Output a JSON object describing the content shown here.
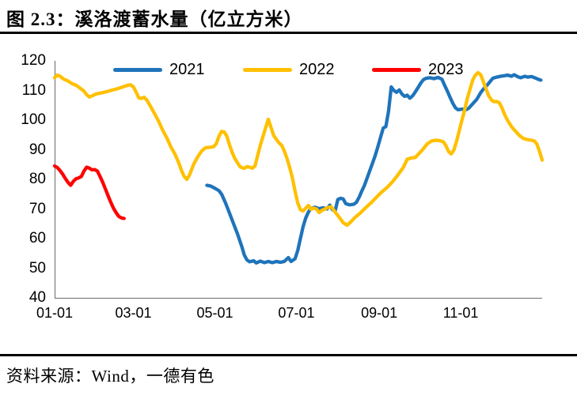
{
  "title": "图 2.3：溪洛渡蓄水量（亿立方米）",
  "source": "资料来源：Wind，一德有色",
  "chart_data": {
    "type": "line",
    "title": "溪洛渡蓄水量（亿立方米）",
    "unit": "亿立方米",
    "legend_position": "top",
    "grid": false,
    "axis_color": "#808080",
    "text_color": "#000000",
    "y_axis": {
      "min": 40,
      "max": 120,
      "ticks": [
        120,
        110,
        100,
        90,
        80,
        70,
        60,
        50,
        40
      ]
    },
    "x_axis": {
      "range_days": [
        1,
        366
      ],
      "ticks": [
        {
          "label": "01-01",
          "day": 1
        },
        {
          "label": "03-01",
          "day": 60
        },
        {
          "label": "05-01",
          "day": 121
        },
        {
          "label": "07-01",
          "day": 182
        },
        {
          "label": "09-01",
          "day": 244
        },
        {
          "label": "11-01",
          "day": 305
        }
      ]
    },
    "series": [
      {
        "name": "2021",
        "color": "#1F74BB",
        "points": [
          [
            115,
            78
          ],
          [
            118,
            77.7
          ],
          [
            121,
            77
          ],
          [
            124,
            76.2
          ],
          [
            126,
            75
          ],
          [
            129,
            72
          ],
          [
            132,
            68.5
          ],
          [
            135,
            65
          ],
          [
            138,
            61.5
          ],
          [
            141,
            57.5
          ],
          [
            143,
            54.5
          ],
          [
            145,
            52.8
          ],
          [
            147,
            52.2
          ],
          [
            150,
            52.5
          ],
          [
            152,
            51.8
          ],
          [
            155,
            52.4
          ],
          [
            158,
            51.9
          ],
          [
            161,
            52.3
          ],
          [
            164,
            51.9
          ],
          [
            167,
            52.3
          ],
          [
            170,
            52
          ],
          [
            173,
            52.3
          ],
          [
            176,
            53.6
          ],
          [
            178,
            52.3
          ],
          [
            181,
            53.2
          ],
          [
            183,
            56
          ],
          [
            185,
            60
          ],
          [
            187,
            64
          ],
          [
            189,
            67
          ],
          [
            191,
            69
          ],
          [
            193,
            70.2
          ],
          [
            196,
            70.6
          ],
          [
            199,
            70.1
          ],
          [
            202,
            70.4
          ],
          [
            205,
            70
          ],
          [
            207,
            71.3
          ],
          [
            209,
            69.8
          ],
          [
            211,
            69.3
          ],
          [
            213,
            73.2
          ],
          [
            215,
            73.6
          ],
          [
            217,
            73.4
          ],
          [
            219,
            71.8
          ],
          [
            222,
            71.4
          ],
          [
            225,
            71.6
          ],
          [
            227,
            72.3
          ],
          [
            229,
            74
          ],
          [
            231,
            76.1
          ],
          [
            233,
            78
          ],
          [
            235,
            80.5
          ],
          [
            237,
            83
          ],
          [
            239,
            85.5
          ],
          [
            241,
            88
          ],
          [
            243,
            91
          ],
          [
            245,
            94.2
          ],
          [
            247,
            97.3
          ],
          [
            249,
            97.8
          ],
          [
            251,
            103
          ],
          [
            253,
            111.2
          ],
          [
            255,
            110
          ],
          [
            257,
            109.4
          ],
          [
            259,
            110.2
          ],
          [
            261,
            108.8
          ],
          [
            263,
            108
          ],
          [
            265,
            108.4
          ],
          [
            267,
            107.4
          ],
          [
            269,
            108.2
          ],
          [
            271,
            109.5
          ],
          [
            273,
            110.9
          ],
          [
            275,
            112.4
          ],
          [
            277,
            113.6
          ],
          [
            279,
            114.1
          ],
          [
            282,
            114.3
          ],
          [
            285,
            114
          ],
          [
            288,
            114.4
          ],
          [
            291,
            113.8
          ],
          [
            293,
            111.7
          ],
          [
            295,
            109.8
          ],
          [
            297,
            107.7
          ],
          [
            299,
            105.8
          ],
          [
            301,
            104.2
          ],
          [
            303,
            103.5
          ],
          [
            306,
            103.7
          ],
          [
            309,
            103.5
          ],
          [
            311,
            104
          ],
          [
            314,
            105.5
          ],
          [
            317,
            107
          ],
          [
            320,
            109.3
          ],
          [
            323,
            111
          ],
          [
            325,
            111.9
          ],
          [
            327,
            113
          ],
          [
            329,
            114.1
          ],
          [
            332,
            114.5
          ],
          [
            335,
            114.8
          ],
          [
            338,
            115
          ],
          [
            340,
            115.2
          ],
          [
            343,
            114.8
          ],
          [
            345,
            115.3
          ],
          [
            348,
            114.6
          ],
          [
            350,
            114.3
          ],
          [
            353,
            114.8
          ],
          [
            355,
            114.5
          ],
          [
            358,
            114.7
          ],
          [
            361,
            114.2
          ],
          [
            363,
            113.8
          ],
          [
            365,
            113.5
          ]
        ]
      },
      {
        "name": "2022",
        "color": "#FFC000",
        "points": [
          [
            1,
            114.3
          ],
          [
            3,
            115.2
          ],
          [
            5,
            114.8
          ],
          [
            8,
            113.8
          ],
          [
            11,
            113.2
          ],
          [
            14,
            112.3
          ],
          [
            17,
            111.8
          ],
          [
            20,
            110.8
          ],
          [
            23,
            109.8
          ],
          [
            25,
            108.6
          ],
          [
            27,
            107.8
          ],
          [
            29,
            108.2
          ],
          [
            32,
            108.8
          ],
          [
            35,
            109.1
          ],
          [
            38,
            109.4
          ],
          [
            41,
            109.7
          ],
          [
            44,
            110.1
          ],
          [
            48,
            110.6
          ],
          [
            52,
            111.2
          ],
          [
            56,
            111.8
          ],
          [
            58,
            111.9
          ],
          [
            60,
            111.2
          ],
          [
            62,
            109.5
          ],
          [
            64,
            107.5
          ],
          [
            66,
            107.3
          ],
          [
            68,
            107.7
          ],
          [
            70,
            106.8
          ],
          [
            73,
            104.5
          ],
          [
            76,
            102
          ],
          [
            79,
            99.5
          ],
          [
            82,
            96.5
          ],
          [
            85,
            94
          ],
          [
            88,
            91
          ],
          [
            91,
            88.6
          ],
          [
            94,
            85.5
          ],
          [
            96,
            83
          ],
          [
            98,
            81
          ],
          [
            100,
            80
          ],
          [
            102,
            81.5
          ],
          [
            105,
            85
          ],
          [
            108,
            87.5
          ],
          [
            111,
            89.5
          ],
          [
            114,
            90.7
          ],
          [
            117,
            90.8
          ],
          [
            120,
            91
          ],
          [
            122,
            92
          ],
          [
            124,
            94.5
          ],
          [
            126,
            96.2
          ],
          [
            128,
            96
          ],
          [
            130,
            94.5
          ],
          [
            132,
            91.5
          ],
          [
            134,
            89
          ],
          [
            136,
            87
          ],
          [
            138,
            85.5
          ],
          [
            140,
            84.2
          ],
          [
            143,
            83.7
          ],
          [
            145,
            84.3
          ],
          [
            147,
            84.1
          ],
          [
            149,
            83.8
          ],
          [
            151,
            84.5
          ],
          [
            153,
            88
          ],
          [
            155,
            91.5
          ],
          [
            157,
            94.5
          ],
          [
            159,
            97.5
          ],
          [
            161,
            100.3
          ],
          [
            163,
            97.5
          ],
          [
            165,
            94.8
          ],
          [
            167,
            93.5
          ],
          [
            169,
            92.3
          ],
          [
            171,
            91.5
          ],
          [
            173,
            89.5
          ],
          [
            175,
            87
          ],
          [
            177,
            84
          ],
          [
            179,
            80.5
          ],
          [
            181,
            76
          ],
          [
            183,
            72
          ],
          [
            185,
            69.8
          ],
          [
            187,
            69.3
          ],
          [
            189,
            70.3
          ],
          [
            191,
            71.2
          ],
          [
            193,
            69.9
          ],
          [
            195,
            70.3
          ],
          [
            197,
            70
          ],
          [
            199,
            68.8
          ],
          [
            201,
            69.5
          ],
          [
            203,
            69.9
          ],
          [
            205,
            70.4
          ],
          [
            208,
            70.8
          ],
          [
            211,
            69
          ],
          [
            214,
            67.2
          ],
          [
            217,
            65.4
          ],
          [
            220,
            64.5
          ],
          [
            223,
            65.8
          ],
          [
            226,
            67.2
          ],
          [
            230,
            68.7
          ],
          [
            234,
            70.5
          ],
          [
            238,
            72.1
          ],
          [
            242,
            74
          ],
          [
            246,
            75.8
          ],
          [
            250,
            77.3
          ],
          [
            254,
            79.2
          ],
          [
            258,
            81.5
          ],
          [
            262,
            84
          ],
          [
            265,
            86.8
          ],
          [
            268,
            87.2
          ],
          [
            271,
            87.4
          ],
          [
            274,
            88.8
          ],
          [
            277,
            90.3
          ],
          [
            280,
            92
          ],
          [
            283,
            92.9
          ],
          [
            286,
            93.2
          ],
          [
            289,
            93.1
          ],
          [
            292,
            92.7
          ],
          [
            294,
            91.3
          ],
          [
            296,
            89.3
          ],
          [
            298,
            88.6
          ],
          [
            300,
            90
          ],
          [
            302,
            93
          ],
          [
            305,
            98.4
          ],
          [
            308,
            103.5
          ],
          [
            310,
            107.4
          ],
          [
            312,
            110.5
          ],
          [
            314,
            113.5
          ],
          [
            316,
            115.2
          ],
          [
            318,
            116
          ],
          [
            320,
            115.3
          ],
          [
            322,
            113
          ],
          [
            324,
            110.5
          ],
          [
            326,
            108.2
          ],
          [
            328,
            106.8
          ],
          [
            330,
            106.2
          ],
          [
            332,
            106.3
          ],
          [
            334,
            105.8
          ],
          [
            336,
            104
          ],
          [
            338,
            101.8
          ],
          [
            340,
            100
          ],
          [
            343,
            97.8
          ],
          [
            346,
            96.3
          ],
          [
            349,
            94.8
          ],
          [
            352,
            93.8
          ],
          [
            355,
            93.4
          ],
          [
            358,
            93.2
          ],
          [
            360,
            93
          ],
          [
            362,
            92
          ],
          [
            364,
            89.5
          ],
          [
            366,
            86.5
          ]
        ]
      },
      {
        "name": "2023",
        "color": "#FF0000",
        "points": [
          [
            1,
            84.5
          ],
          [
            3,
            84
          ],
          [
            5,
            83
          ],
          [
            7,
            81.8
          ],
          [
            9,
            80.3
          ],
          [
            11,
            79
          ],
          [
            13,
            78
          ],
          [
            15,
            79.3
          ],
          [
            17,
            80.2
          ],
          [
            19,
            80.5
          ],
          [
            21,
            81
          ],
          [
            23,
            82.8
          ],
          [
            25,
            84.1
          ],
          [
            27,
            83.8
          ],
          [
            29,
            83.2
          ],
          [
            31,
            83.3
          ],
          [
            33,
            82.8
          ],
          [
            35,
            81
          ],
          [
            37,
            79
          ],
          [
            39,
            76.8
          ],
          [
            41,
            74.5
          ],
          [
            43,
            72.3
          ],
          [
            45,
            70.3
          ],
          [
            47,
            68.8
          ],
          [
            49,
            67.5
          ],
          [
            51,
            67
          ],
          [
            53,
            66.8
          ]
        ]
      }
    ]
  }
}
